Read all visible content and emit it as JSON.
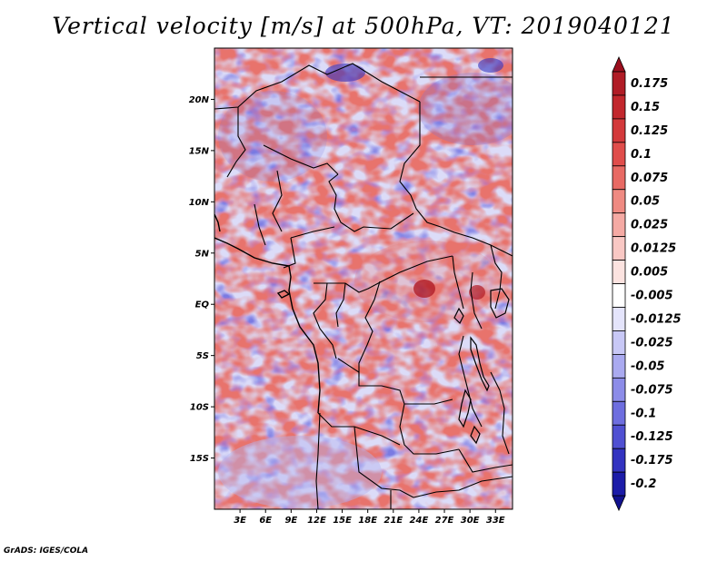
{
  "title": "Vertical velocity [m/s] at 500hPa, VT: 2019040121",
  "footer": "GrADS: IGES/COLA",
  "map": {
    "lon_range": [
      0,
      35
    ],
    "lat_range": [
      -20,
      25
    ],
    "lat_ticks": [
      {
        "value": 20,
        "label": "20N"
      },
      {
        "value": 15,
        "label": "15N"
      },
      {
        "value": 10,
        "label": "10N"
      },
      {
        "value": 5,
        "label": "5N"
      },
      {
        "value": 0,
        "label": "EQ"
      },
      {
        "value": -5,
        "label": "5S"
      },
      {
        "value": -10,
        "label": "10S"
      },
      {
        "value": -15,
        "label": "15S"
      }
    ],
    "lon_ticks": [
      {
        "value": 3,
        "label": "3E"
      },
      {
        "value": 6,
        "label": "6E"
      },
      {
        "value": 9,
        "label": "9E"
      },
      {
        "value": 12,
        "label": "12E"
      },
      {
        "value": 15,
        "label": "15E"
      },
      {
        "value": 18,
        "label": "18E"
      },
      {
        "value": 21,
        "label": "21E"
      },
      {
        "value": 24,
        "label": "24E"
      },
      {
        "value": 27,
        "label": "27E"
      },
      {
        "value": 30,
        "label": "30E"
      },
      {
        "value": 33,
        "label": "33E"
      }
    ]
  },
  "colorbar": {
    "levels": [
      {
        "label": "0.175",
        "color": "#b01c26"
      },
      {
        "label": "0.15",
        "color": "#c2272d"
      },
      {
        "label": "0.125",
        "color": "#d3393b"
      },
      {
        "label": "0.1",
        "color": "#e04d4b"
      },
      {
        "label": "0.075",
        "color": "#e86a64"
      },
      {
        "label": "0.05",
        "color": "#ef8a82"
      },
      {
        "label": "0.025",
        "color": "#f5aaa4"
      },
      {
        "label": "0.0125",
        "color": "#f9c8c4"
      },
      {
        "label": "0.005",
        "color": "#fce3e0"
      },
      {
        "label": "-0.005",
        "color": "#ffffff"
      },
      {
        "label": "-0.0125",
        "color": "#e4e4fb"
      },
      {
        "label": "-0.025",
        "color": "#c8c8f6"
      },
      {
        "label": "-0.05",
        "color": "#aaaaf0"
      },
      {
        "label": "-0.075",
        "color": "#8c8ce8"
      },
      {
        "label": "-0.1",
        "color": "#6e6edf"
      },
      {
        "label": "-0.125",
        "color": "#5050d2"
      },
      {
        "label": "-0.175",
        "color": "#3333c0"
      },
      {
        "label": "-0.2",
        "color": "#1c1ca8"
      }
    ],
    "top_color": "#9c0f1e",
    "bottom_color": "#12128f"
  }
}
